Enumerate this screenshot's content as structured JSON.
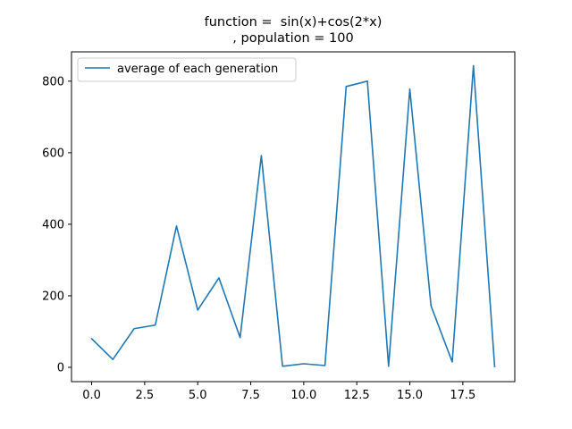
{
  "chart_data": {
    "type": "line",
    "title_line1": "function =  sin(x)+cos(2*x)",
    "title_line2": ", population = 100",
    "xlabel": "",
    "ylabel": "",
    "xlim": [
      -0.95,
      19.95
    ],
    "ylim": [
      -40,
      882
    ],
    "xticks": [
      0.0,
      2.5,
      5.0,
      7.5,
      10.0,
      12.5,
      15.0,
      17.5
    ],
    "xtick_labels": [
      "0.0",
      "2.5",
      "5.0",
      "7.5",
      "10.0",
      "12.5",
      "15.0",
      "17.5"
    ],
    "yticks": [
      0,
      200,
      400,
      600,
      800
    ],
    "ytick_labels": [
      "0",
      "200",
      "400",
      "600",
      "800"
    ],
    "grid": false,
    "legend_position": "upper-left",
    "series": [
      {
        "name": "average of each generation",
        "color": "#1f77b4",
        "x": [
          0,
          1,
          2,
          3,
          4,
          5,
          6,
          7,
          8,
          9,
          10,
          11,
          12,
          13,
          14,
          15,
          16,
          17,
          18,
          19
        ],
        "values": [
          80,
          22,
          108,
          118,
          395,
          160,
          250,
          83,
          592,
          3,
          10,
          5,
          785,
          800,
          3,
          778,
          172,
          15,
          843,
          2
        ]
      }
    ]
  }
}
